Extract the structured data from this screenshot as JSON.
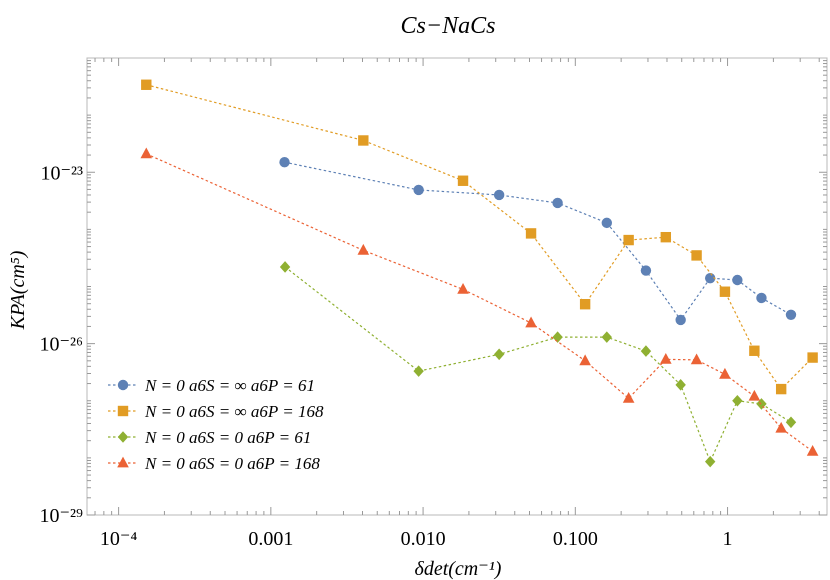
{
  "chart_data": {
    "type": "scatter",
    "title": "Cs−NaCs",
    "xlabel": "δdet(cm⁻¹)",
    "ylabel": "KPA(cm⁵)",
    "xscale": "log",
    "yscale": "log",
    "xlim": [
      6.2e-05,
      4.5
    ],
    "ylim": [
      1e-29,
      1e-21
    ],
    "x_ticks": [
      {
        "value": 0.0001,
        "label": "10⁻⁴"
      },
      {
        "value": 0.001,
        "label": "0.001"
      },
      {
        "value": 0.01,
        "label": "0.010"
      },
      {
        "value": 0.1,
        "label": "0.100"
      },
      {
        "value": 1,
        "label": "1"
      }
    ],
    "y_ticks": [
      {
        "value": 1e-23,
        "label": "10⁻²³"
      },
      {
        "value": 1e-26,
        "label": "10⁻²⁶"
      },
      {
        "value": 1e-29,
        "label": "10⁻²⁹"
      }
    ],
    "grid": false,
    "legend_position": "bottom-left",
    "series": [
      {
        "name": "N = 0 a6S = ∞ a6P = 61",
        "color": "#5e81b5",
        "marker": "circle",
        "x": [
          0.00123,
          0.00935,
          0.0316,
          0.0765,
          0.161,
          0.291,
          0.492,
          0.769,
          1.16,
          1.67,
          2.61
        ],
        "y": [
          1.5e-23,
          4.9e-24,
          4e-24,
          2.9e-24,
          1.3e-24,
          1.9e-25,
          2.6e-26,
          1.4e-25,
          1.3e-25,
          6.3e-26,
          3.2e-26
        ]
      },
      {
        "name": "N = 0 a6S = ∞ a6P = 168",
        "color": "#e19c24",
        "marker": "square",
        "x": [
          0.000152,
          0.00405,
          0.0183,
          0.0512,
          0.116,
          0.224,
          0.393,
          0.626,
          0.961,
          1.5,
          2.25,
          3.62
        ],
        "y": [
          3.4e-22,
          3.6e-23,
          7.1e-24,
          8.5e-25,
          4.9e-26,
          6.5e-25,
          7.3e-25,
          3.5e-25,
          8.1e-26,
          7.5e-27,
          1.6e-27,
          5.7e-27
        ]
      },
      {
        "name": "N = 0 a6S = 0 a6P = 61",
        "color": "#8fb032",
        "marker": "diamond",
        "x": [
          0.00124,
          0.00935,
          0.0316,
          0.0765,
          0.161,
          0.291,
          0.492,
          0.769,
          1.16,
          1.67,
          2.61
        ],
        "y": [
          2.2e-25,
          3.3e-27,
          6.5e-27,
          1.3e-26,
          1.3e-26,
          7.4e-27,
          1.9e-27,
          8.6e-29,
          1e-27,
          8.8e-28,
          4.2e-28
        ]
      },
      {
        "name": "N = 0 a6S = 0 a6P = 168",
        "color": "#eb6235",
        "marker": "triangle",
        "x": [
          0.000152,
          0.00405,
          0.0183,
          0.0512,
          0.116,
          0.224,
          0.393,
          0.626,
          0.961,
          1.5,
          2.25,
          3.62
        ],
        "y": [
          2.1e-23,
          4.3e-25,
          8.9e-26,
          2.3e-26,
          5e-27,
          1.1e-27,
          5.3e-27,
          5.2e-27,
          2.9e-27,
          1.2e-27,
          3.3e-28,
          1.3e-28
        ]
      }
    ]
  }
}
